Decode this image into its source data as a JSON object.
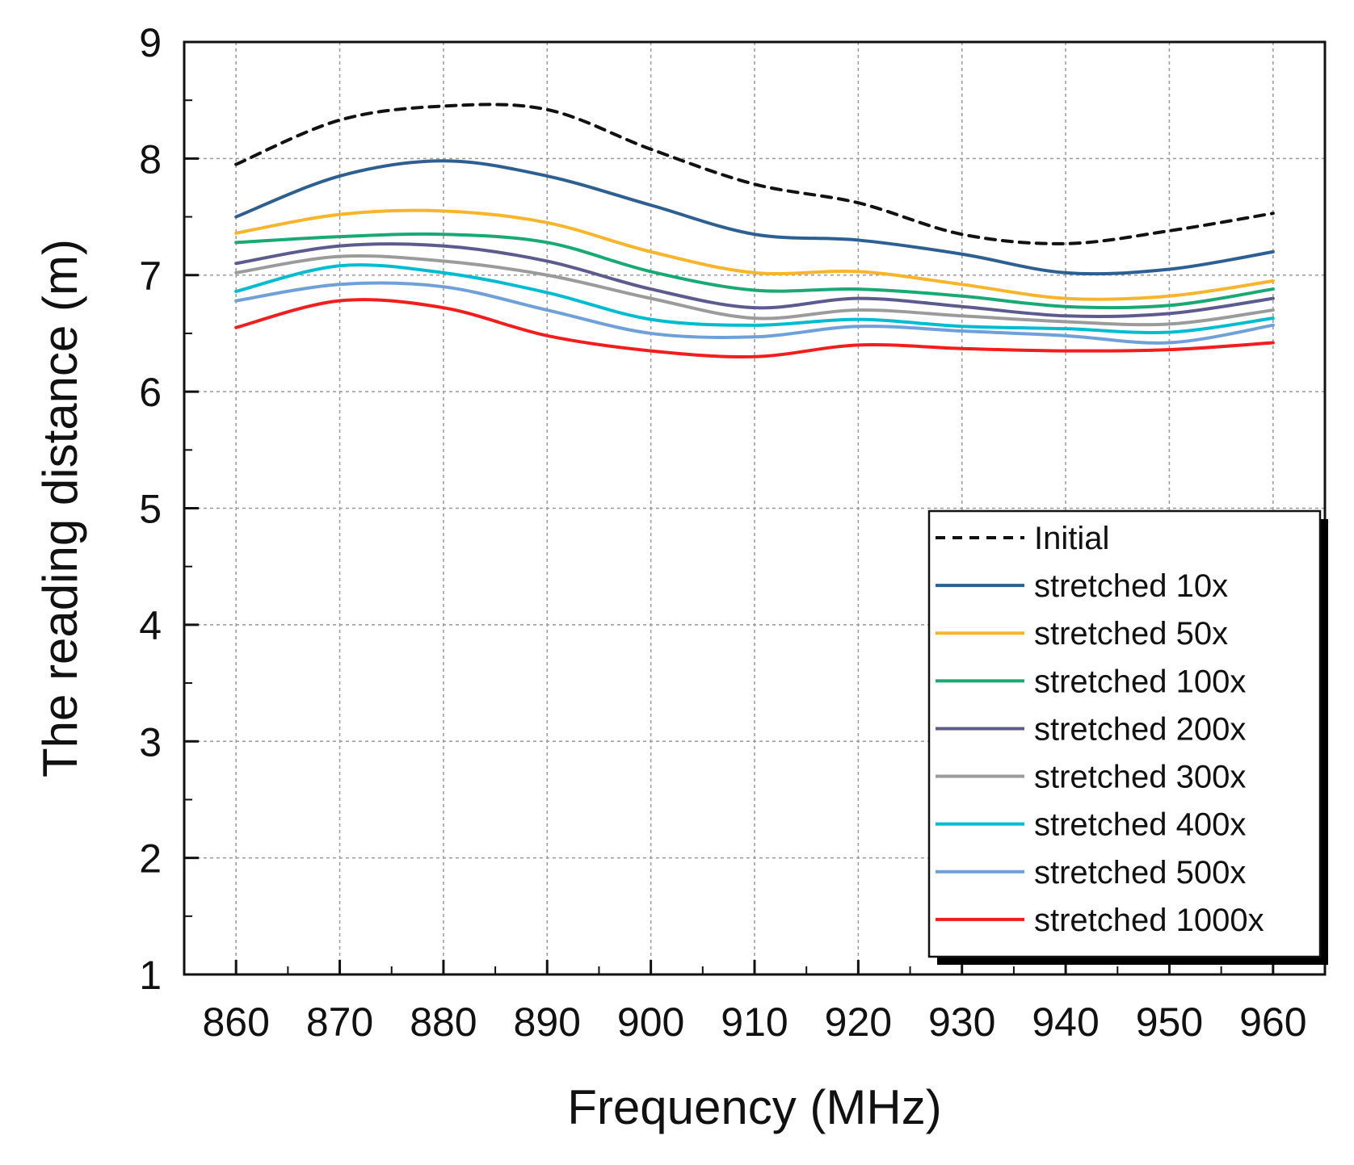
{
  "chart_data": {
    "type": "line",
    "title": "",
    "xlabel": "Frequency (MHz)",
    "ylabel": "The reading distance (m)",
    "xlim": [
      855,
      965
    ],
    "ylim": [
      1,
      9
    ],
    "xticks": [
      860,
      870,
      880,
      890,
      900,
      910,
      920,
      930,
      940,
      950,
      960
    ],
    "yticks": [
      1,
      2,
      3,
      4,
      5,
      6,
      7,
      8,
      9
    ],
    "grid": true,
    "legend_position": "bottom-right",
    "x": [
      860,
      870,
      880,
      890,
      900,
      910,
      920,
      930,
      940,
      950,
      960
    ],
    "series": [
      {
        "name": "Initial",
        "color": "#111111",
        "dashed": true,
        "values": [
          7.95,
          8.33,
          8.45,
          8.42,
          8.08,
          7.78,
          7.62,
          7.35,
          7.27,
          7.38,
          7.53
        ]
      },
      {
        "name": "stretched 10x",
        "color": "#2e5f91",
        "dashed": false,
        "values": [
          7.5,
          7.85,
          7.98,
          7.85,
          7.6,
          7.35,
          7.3,
          7.18,
          7.02,
          7.05,
          7.2
        ]
      },
      {
        "name": "stretched 50x",
        "color": "#f7b52b",
        "dashed": false,
        "values": [
          7.36,
          7.52,
          7.55,
          7.45,
          7.2,
          7.02,
          7.03,
          6.92,
          6.8,
          6.82,
          6.95
        ]
      },
      {
        "name": "stretched 100x",
        "color": "#1aa874",
        "dashed": false,
        "values": [
          7.28,
          7.33,
          7.35,
          7.28,
          7.03,
          6.87,
          6.88,
          6.82,
          6.73,
          6.74,
          6.88
        ]
      },
      {
        "name": "stretched 200x",
        "color": "#5d5a8e",
        "dashed": false,
        "values": [
          7.1,
          7.25,
          7.25,
          7.12,
          6.88,
          6.72,
          6.8,
          6.73,
          6.65,
          6.67,
          6.8
        ]
      },
      {
        "name": "stretched 300x",
        "color": "#9b9b9b",
        "dashed": false,
        "values": [
          7.02,
          7.16,
          7.12,
          7.0,
          6.8,
          6.63,
          6.7,
          6.65,
          6.6,
          6.58,
          6.7
        ]
      },
      {
        "name": "stretched 400x",
        "color": "#00bcd0",
        "dashed": false,
        "values": [
          6.86,
          7.08,
          7.02,
          6.85,
          6.62,
          6.57,
          6.62,
          6.56,
          6.54,
          6.51,
          6.63
        ]
      },
      {
        "name": "stretched 500x",
        "color": "#6fa0d8",
        "dashed": false,
        "values": [
          6.78,
          6.92,
          6.9,
          6.7,
          6.5,
          6.47,
          6.56,
          6.52,
          6.48,
          6.42,
          6.57
        ]
      },
      {
        "name": "stretched 1000x",
        "color": "#f21d1d",
        "dashed": false,
        "values": [
          6.55,
          6.78,
          6.72,
          6.48,
          6.35,
          6.3,
          6.4,
          6.37,
          6.35,
          6.36,
          6.42
        ]
      }
    ]
  }
}
